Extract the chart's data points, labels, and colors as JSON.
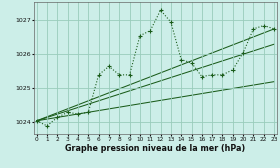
{
  "xlabel": "Graphe pression niveau de la mer (hPa)",
  "x_ticks": [
    0,
    1,
    2,
    3,
    4,
    5,
    6,
    7,
    8,
    9,
    10,
    11,
    12,
    13,
    14,
    15,
    16,
    17,
    18,
    19,
    20,
    21,
    22,
    23
  ],
  "y_ticks": [
    1024,
    1025,
    1026,
    1027
  ],
  "ylim": [
    1023.65,
    1027.55
  ],
  "xlim": [
    -0.3,
    23.3
  ],
  "background_color": "#cceee8",
  "grid_color": "#99ccbb",
  "line_color": "#1a5c1a",
  "series": {
    "main": {
      "x": [
        0,
        1,
        2,
        3,
        4,
        5,
        6,
        7,
        8,
        9,
        10,
        11,
        12,
        13,
        14,
        15,
        16,
        17,
        18,
        19,
        20,
        21,
        22,
        23
      ],
      "y": [
        1024.05,
        1023.9,
        1024.15,
        1024.3,
        1024.25,
        1024.3,
        1025.4,
        1025.65,
        1025.4,
        1025.4,
        1026.55,
        1026.7,
        1027.3,
        1026.95,
        1025.85,
        1025.75,
        1025.35,
        1025.4,
        1025.4,
        1025.55,
        1026.05,
        1026.75,
        1026.85,
        1026.75
      ]
    },
    "ref1": {
      "x": [
        0,
        23
      ],
      "y": [
        1024.05,
        1026.75
      ]
    },
    "ref2": {
      "x": [
        0,
        23
      ],
      "y": [
        1024.05,
        1026.3
      ]
    },
    "ref3": {
      "x": [
        0,
        23
      ],
      "y": [
        1024.05,
        1025.2
      ]
    }
  }
}
